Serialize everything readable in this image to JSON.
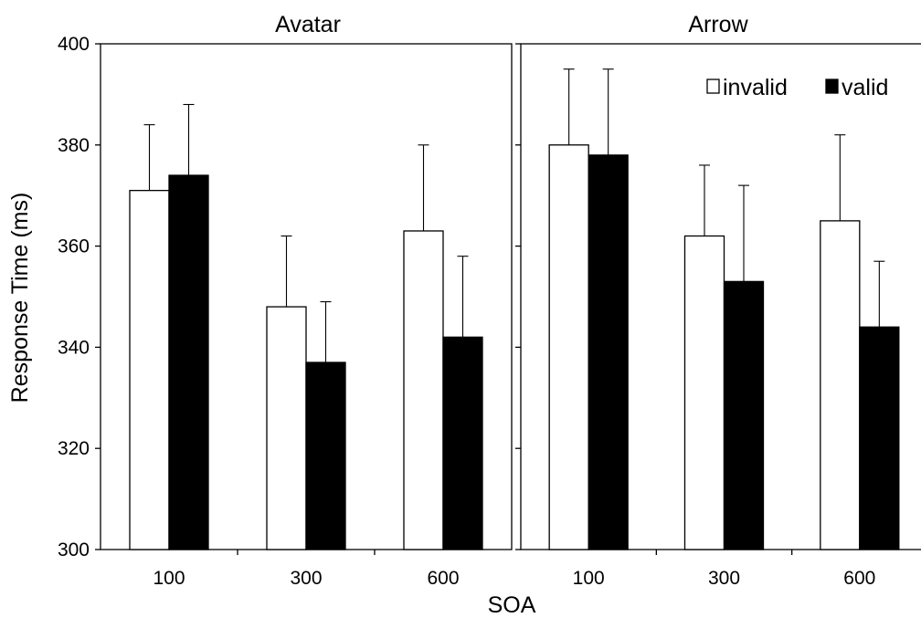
{
  "chart_data": {
    "type": "bar",
    "ylabel": "Response Time (ms)",
    "xlabel": "SOA",
    "ylim": [
      300,
      400
    ],
    "yticks": [
      300,
      320,
      340,
      360,
      380,
      400
    ],
    "categories": [
      "100",
      "300",
      "600"
    ],
    "error_bars": "upper only",
    "grid": false,
    "legend_position": "top-right",
    "series_styles": [
      {
        "name": "invalid",
        "fill": "#ffffff",
        "stroke": "#000000"
      },
      {
        "name": "valid",
        "fill": "#000000",
        "stroke": "#000000"
      }
    ],
    "panels": [
      {
        "title": "Avatar",
        "series": [
          {
            "name": "invalid",
            "values": [
              371,
              348,
              363
            ],
            "error_upper": [
              384,
              362,
              380
            ]
          },
          {
            "name": "valid",
            "values": [
              374,
              337,
              342
            ],
            "error_upper": [
              388,
              349,
              358
            ]
          }
        ]
      },
      {
        "title": "Arrow",
        "series": [
          {
            "name": "invalid",
            "values": [
              380,
              362,
              365
            ],
            "error_upper": [
              395,
              376,
              382
            ]
          },
          {
            "name": "valid",
            "values": [
              378,
              353,
              344
            ],
            "error_upper": [
              395,
              372,
              357
            ]
          }
        ]
      }
    ]
  }
}
